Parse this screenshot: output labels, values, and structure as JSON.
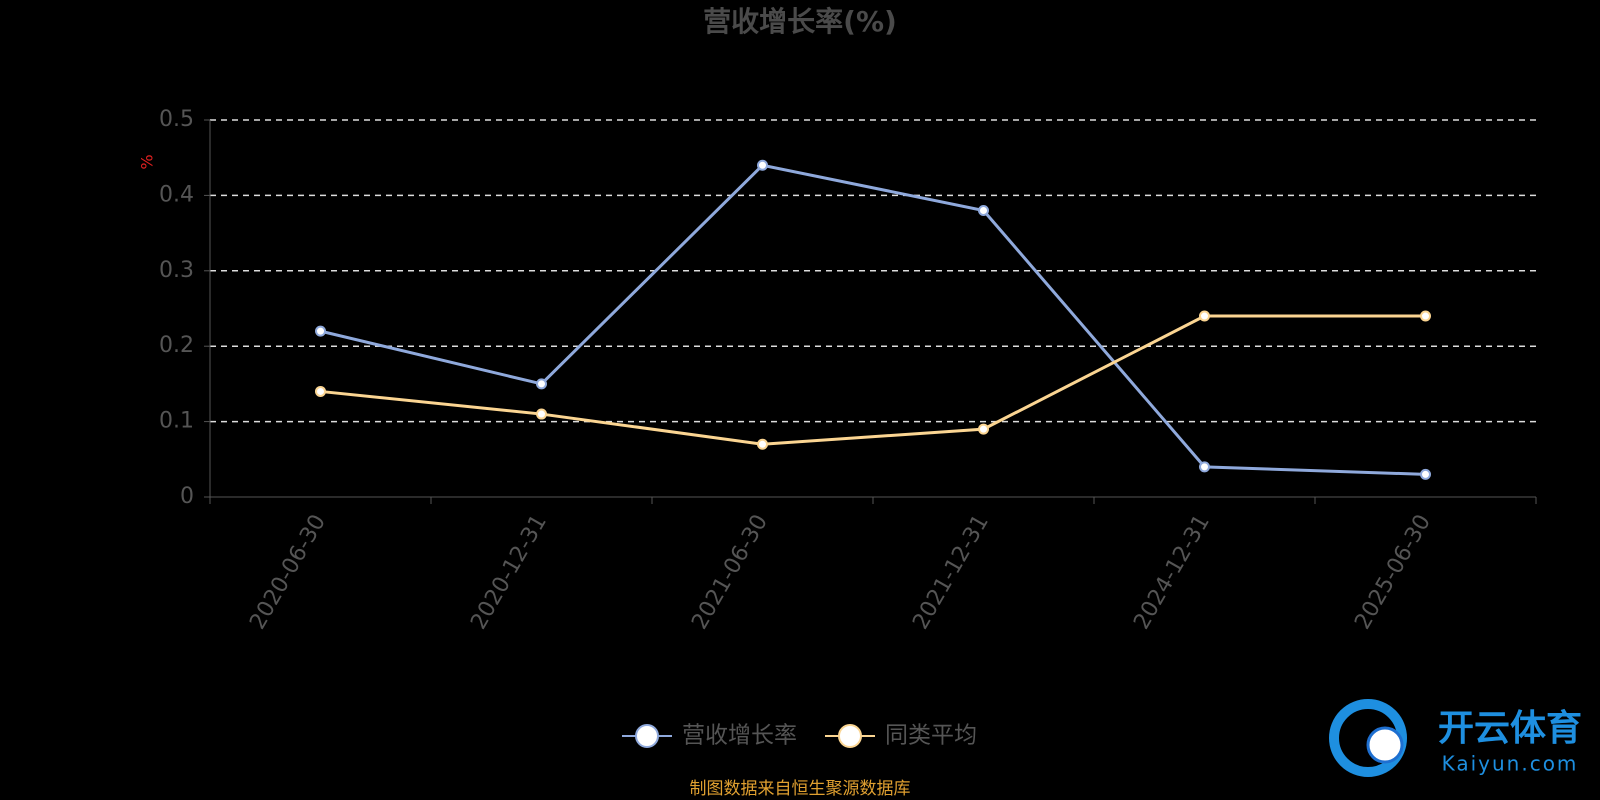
{
  "chart_data": {
    "type": "line",
    "title": "营收增长率(%)",
    "y_label": "%",
    "categories": [
      "2020-06-30",
      "2020-12-31",
      "2021-06-30",
      "2021-12-31",
      "2024-12-31",
      "2025-06-30"
    ],
    "series": [
      {
        "name": "营收增长率",
        "color": "#8fa9dc",
        "values": [
          0.22,
          0.15,
          0.44,
          0.38,
          0.04,
          0.03
        ]
      },
      {
        "name": "同类平均",
        "color": "#fbd592",
        "values": [
          0.14,
          0.11,
          0.07,
          0.09,
          0.24,
          0.24
        ]
      }
    ],
    "ylim": [
      0,
      0.5
    ],
    "yticks": [
      0,
      0.1,
      0.2,
      0.3,
      0.4,
      0.5
    ],
    "grid": true,
    "legend": "bottom",
    "source": "制图数据来自恒生聚源数据库"
  },
  "watermark": {
    "name": "开云体育",
    "url": "Kaiyun.com"
  }
}
